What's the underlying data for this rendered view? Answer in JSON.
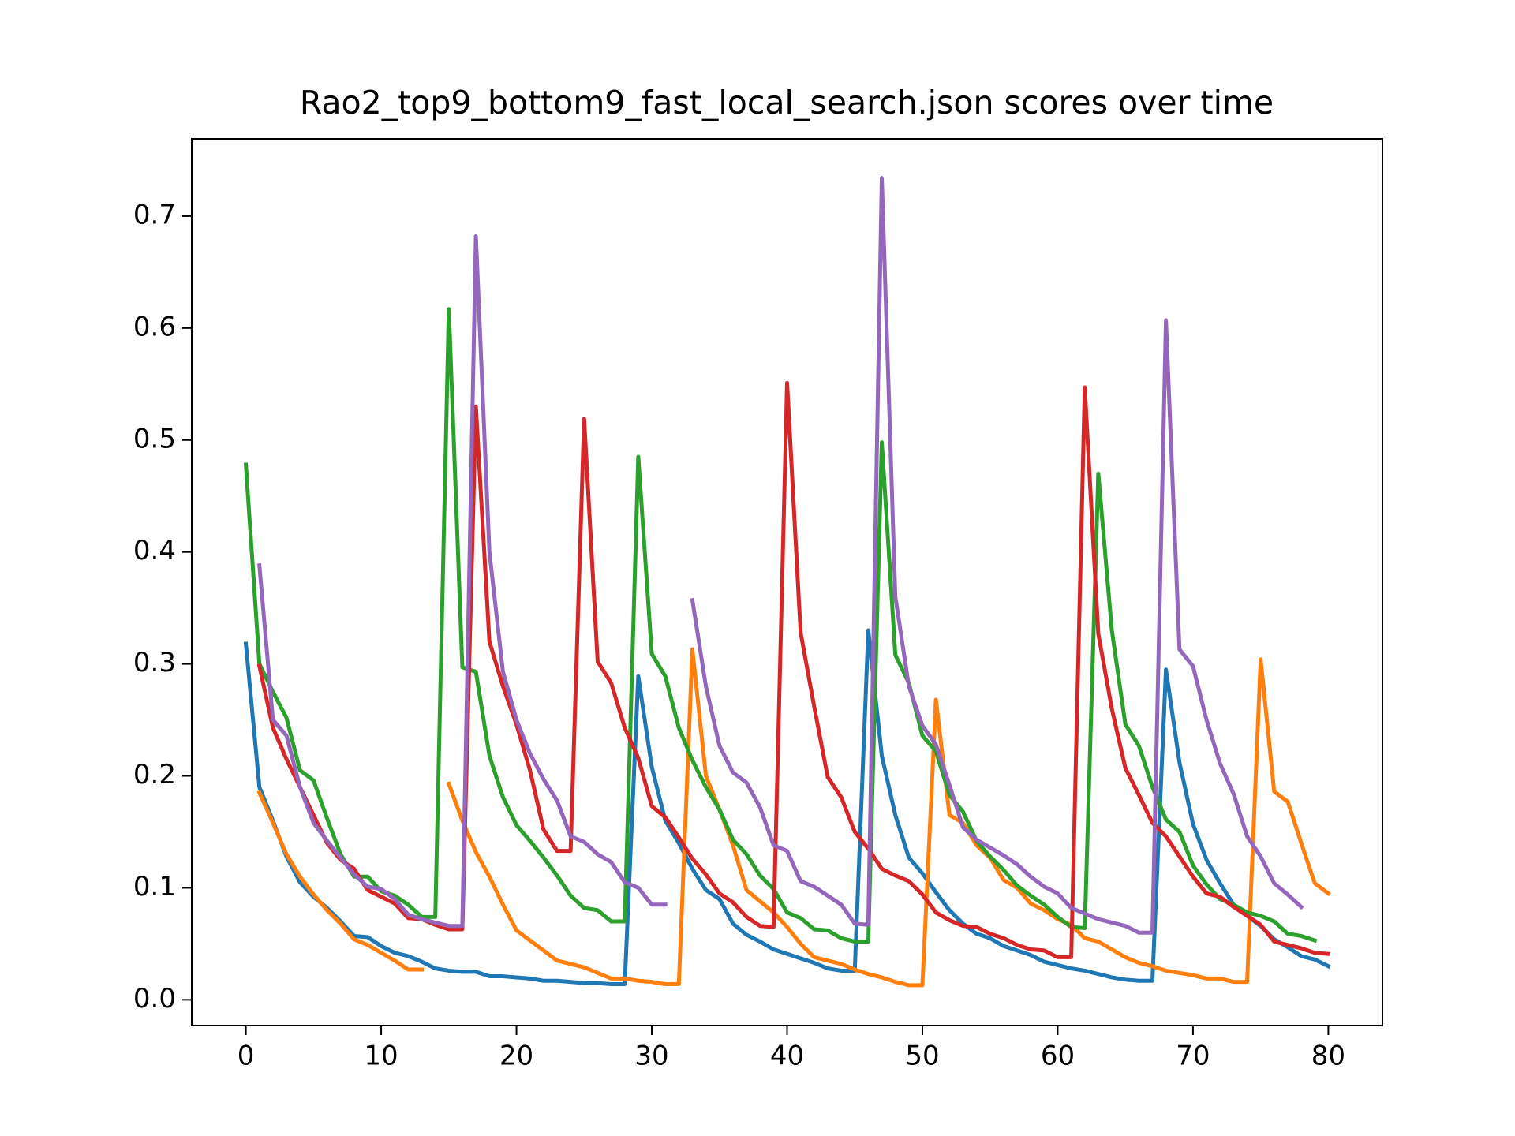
{
  "chart_data": {
    "type": "line",
    "title": "Rao2_top9_bottom9_fast_local_search.json scores over time",
    "x": [
      0,
      1,
      2,
      3,
      4,
      5,
      6,
      7,
      8,
      9,
      10,
      11,
      12,
      13,
      14,
      15,
      16,
      17,
      18,
      19,
      20,
      21,
      22,
      23,
      24,
      25,
      26,
      27,
      28,
      29,
      30,
      31,
      32,
      33,
      34,
      35,
      36,
      37,
      38,
      39,
      40,
      41,
      42,
      43,
      44,
      45,
      46,
      47,
      48,
      49,
      50,
      51,
      52,
      53,
      54,
      55,
      56,
      57,
      58,
      59,
      60,
      61,
      62,
      63,
      64,
      65,
      66,
      67,
      68,
      69,
      70,
      71,
      72,
      73,
      74,
      75,
      76,
      77,
      78,
      79,
      80
    ],
    "xlim": [
      -4,
      84
    ],
    "xticks": [
      0,
      10,
      20,
      30,
      40,
      50,
      60,
      70,
      80
    ],
    "ylim": [
      -0.023,
      0.769
    ],
    "yticks": [
      {
        "value": 0,
        "label": "0.0"
      },
      0.1,
      0.2,
      0.3,
      0.4,
      0.5,
      0.6,
      0.7
    ],
    "grid": false,
    "series": [
      {
        "color": "#1f77b4",
        "values": [
          0.318,
          0.19,
          0.16,
          0.128,
          0.105,
          0.092,
          0.082,
          0.07,
          0.057,
          0.056,
          0.048,
          0.042,
          0.039,
          0.034,
          0.028,
          0.026,
          0.025,
          0.025,
          0.021,
          0.021,
          0.02,
          0.019,
          0.017,
          0.017,
          0.016,
          0.015,
          0.015,
          0.014,
          0.014,
          0.289,
          0.208,
          0.16,
          0.14,
          0.117,
          0.098,
          0.09,
          0.068,
          0.058,
          0.052,
          0.045,
          0.041,
          0.037,
          0.033,
          0.028,
          0.026,
          0.026,
          0.33,
          0.218,
          0.165,
          0.127,
          0.113,
          0.096,
          0.08,
          0.068,
          0.059,
          0.055,
          0.048,
          0.044,
          0.04,
          0.034,
          0.031,
          0.028,
          0.026,
          0.023,
          0.02,
          0.018,
          0.017,
          0.017,
          0.295,
          0.212,
          0.157,
          0.125,
          0.104,
          0.085,
          0.075,
          0.066,
          0.054,
          0.047,
          0.039,
          0.036,
          0.03
        ]
      },
      {
        "color": "#ff7f0e",
        "values": [
          null,
          0.185,
          0.158,
          0.13,
          0.11,
          0.094,
          0.08,
          0.068,
          0.054,
          0.049,
          0.042,
          0.035,
          0.027,
          0.027,
          null,
          0.193,
          0.16,
          0.132,
          0.11,
          0.085,
          0.062,
          0.053,
          0.044,
          0.035,
          0.032,
          0.029,
          0.024,
          0.019,
          0.019,
          0.017,
          0.016,
          0.014,
          0.014,
          0.313,
          0.2,
          0.17,
          0.138,
          0.098,
          0.088,
          0.078,
          0.065,
          0.05,
          0.038,
          0.035,
          0.032,
          0.027,
          0.023,
          0.02,
          0.016,
          0.013,
          0.013,
          0.268,
          0.165,
          0.158,
          0.138,
          0.127,
          0.107,
          0.1,
          0.086,
          0.08,
          0.072,
          0.067,
          0.055,
          0.052,
          0.045,
          0.038,
          0.033,
          0.03,
          0.026,
          0.024,
          0.022,
          0.019,
          0.019,
          0.016,
          0.016,
          0.304,
          0.186,
          0.177,
          0.14,
          0.104,
          0.095
        ]
      },
      {
        "color": "#2ca02c",
        "values": [
          0.478,
          0.3,
          0.275,
          0.252,
          0.205,
          0.196,
          0.162,
          0.13,
          0.11,
          0.11,
          0.097,
          0.093,
          0.085,
          0.074,
          0.074,
          0.617,
          0.297,
          0.293,
          0.218,
          0.181,
          0.156,
          0.142,
          0.127,
          0.111,
          0.093,
          0.082,
          0.08,
          0.07,
          0.07,
          0.485,
          0.309,
          0.289,
          0.243,
          0.214,
          0.19,
          0.17,
          0.143,
          0.13,
          0.111,
          0.099,
          0.078,
          0.073,
          0.063,
          0.062,
          0.055,
          0.052,
          0.052,
          0.498,
          0.308,
          0.283,
          0.236,
          0.222,
          0.183,
          0.168,
          0.142,
          0.128,
          0.116,
          0.102,
          0.093,
          0.085,
          0.074,
          0.065,
          0.064,
          0.47,
          0.33,
          0.246,
          0.227,
          0.19,
          0.161,
          0.15,
          0.12,
          0.103,
          0.09,
          0.085,
          0.078,
          0.075,
          0.07,
          0.059,
          0.057,
          0.053,
          null
        ]
      },
      {
        "color": "#d62728",
        "values": [
          null,
          0.298,
          0.243,
          0.215,
          0.19,
          0.165,
          0.14,
          0.125,
          0.117,
          0.098,
          0.092,
          0.086,
          0.073,
          0.072,
          0.067,
          0.063,
          0.063,
          0.53,
          0.32,
          0.28,
          0.246,
          0.205,
          0.152,
          0.133,
          0.133,
          0.519,
          0.302,
          0.283,
          0.243,
          0.216,
          0.173,
          0.163,
          0.145,
          0.126,
          0.112,
          0.095,
          0.087,
          0.074,
          0.066,
          0.065,
          0.551,
          0.328,
          0.262,
          0.199,
          0.181,
          0.15,
          0.135,
          0.117,
          0.111,
          0.106,
          0.094,
          0.078,
          0.071,
          0.066,
          0.065,
          0.059,
          0.055,
          0.049,
          0.045,
          0.044,
          0.038,
          0.038,
          0.547,
          0.327,
          0.26,
          0.207,
          0.183,
          0.158,
          0.146,
          0.128,
          0.11,
          0.095,
          0.092,
          0.083,
          0.075,
          0.067,
          0.052,
          0.049,
          0.046,
          0.042,
          0.041
        ]
      },
      {
        "color": "#9467bd",
        "values": [
          null,
          0.388,
          0.25,
          0.236,
          0.19,
          0.158,
          0.142,
          0.127,
          0.112,
          0.101,
          0.099,
          0.09,
          0.076,
          0.072,
          0.069,
          0.066,
          0.066,
          0.682,
          0.4,
          0.293,
          0.25,
          0.22,
          0.197,
          0.178,
          0.146,
          0.141,
          0.13,
          0.123,
          0.105,
          0.1,
          0.085,
          0.085,
          null,
          0.357,
          0.28,
          0.227,
          0.203,
          0.194,
          0.172,
          0.138,
          0.133,
          0.106,
          0.101,
          0.093,
          0.085,
          0.068,
          0.067,
          0.734,
          0.36,
          0.28,
          0.245,
          0.228,
          0.192,
          0.154,
          0.143,
          0.136,
          0.129,
          0.121,
          0.11,
          0.101,
          0.095,
          0.082,
          0.077,
          0.072,
          0.069,
          0.066,
          0.06,
          0.06,
          0.607,
          0.313,
          0.298,
          0.25,
          0.211,
          0.184,
          0.146,
          0.128,
          0.104,
          0.094,
          0.083,
          null,
          null
        ]
      }
    ]
  }
}
